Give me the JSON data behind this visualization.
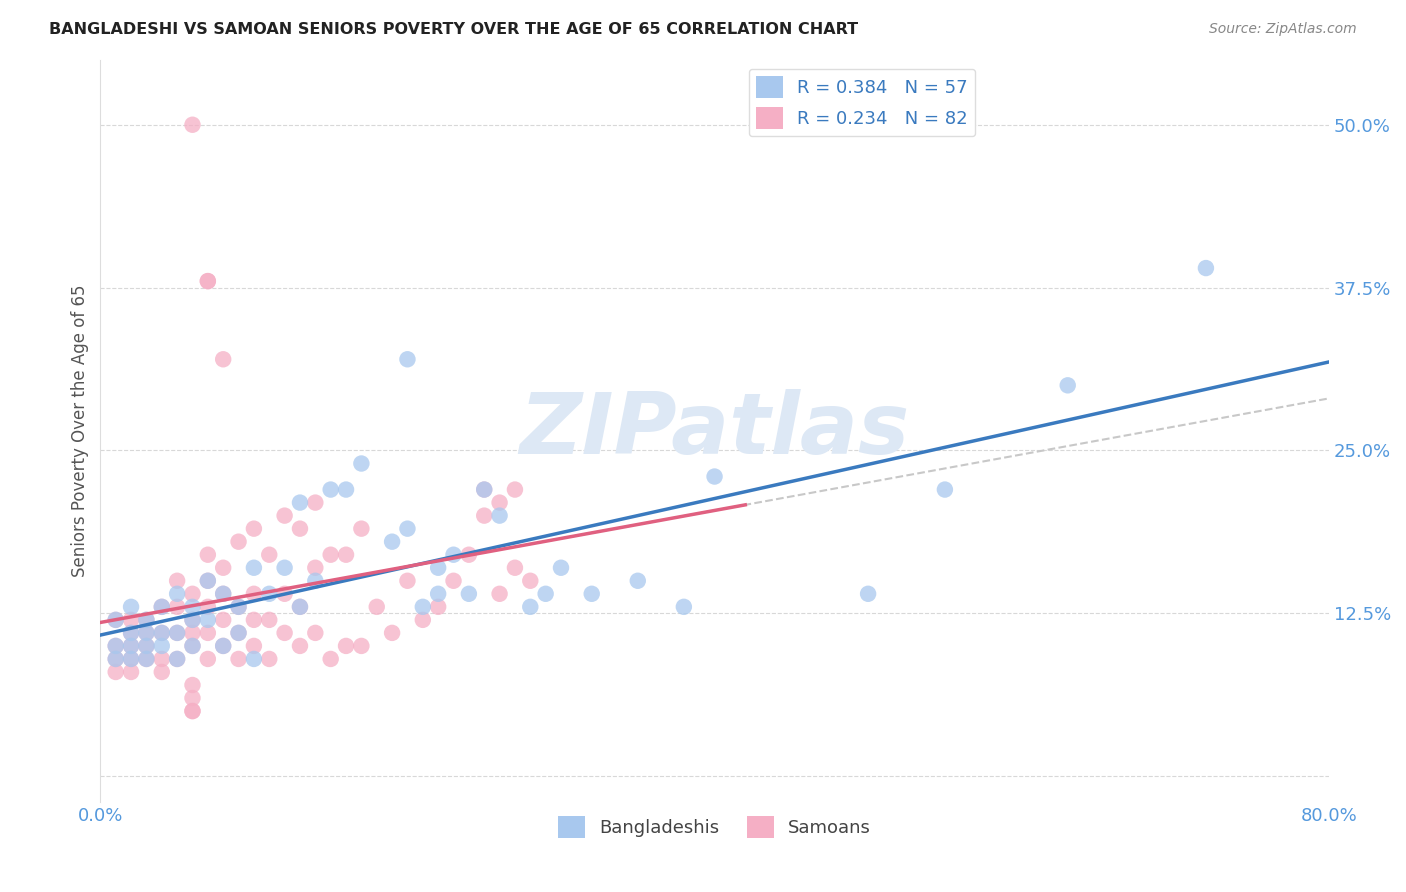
{
  "title": "BANGLADESHI VS SAMOAN SENIORS POVERTY OVER THE AGE OF 65 CORRELATION CHART",
  "source": "Source: ZipAtlas.com",
  "ylabel": "Seniors Poverty Over the Age of 65",
  "xlim": [
    0.0,
    0.8
  ],
  "ylim": [
    -0.02,
    0.55
  ],
  "xticks": [
    0.0,
    0.1,
    0.2,
    0.3,
    0.4,
    0.5,
    0.6,
    0.7,
    0.8
  ],
  "xticklabels": [
    "0.0%",
    "",
    "",
    "",
    "",
    "",
    "",
    "",
    "80.0%"
  ],
  "ytick_positions": [
    0.0,
    0.125,
    0.25,
    0.375,
    0.5
  ],
  "yticklabels": [
    "",
    "12.5%",
    "25.0%",
    "37.5%",
    "50.0%"
  ],
  "background_color": "#ffffff",
  "grid_color": "#d8d8d8",
  "legend_R_blue": "R = 0.384",
  "legend_N_blue": "N = 57",
  "legend_R_pink": "R = 0.234",
  "legend_N_pink": "N = 82",
  "legend_label_blue_name": "Bangladeshis",
  "legend_label_pink_name": "Samoans",
  "blue_fill": "#a8c8ee",
  "pink_fill": "#f5afc5",
  "blue_line_color": "#3a7abf",
  "pink_line_color": "#e06080",
  "dash_color": "#c8c8c8",
  "title_color": "#222222",
  "axis_label_color": "#555555",
  "tick_color": "#5599dd",
  "watermark": "ZIPatlas",
  "watermark_color": "#dde8f5",
  "blue_x": [
    0.01,
    0.01,
    0.01,
    0.02,
    0.02,
    0.02,
    0.02,
    0.03,
    0.03,
    0.03,
    0.03,
    0.04,
    0.04,
    0.04,
    0.05,
    0.05,
    0.05,
    0.06,
    0.06,
    0.06,
    0.07,
    0.07,
    0.08,
    0.08,
    0.09,
    0.09,
    0.1,
    0.1,
    0.11,
    0.12,
    0.13,
    0.13,
    0.14,
    0.15,
    0.16,
    0.17,
    0.19,
    0.2,
    0.21,
    0.22,
    0.22,
    0.23,
    0.24,
    0.25,
    0.26,
    0.28,
    0.29,
    0.3,
    0.32,
    0.35,
    0.38,
    0.4,
    0.5,
    0.55,
    0.63,
    0.72,
    0.2
  ],
  "blue_y": [
    0.1,
    0.12,
    0.09,
    0.11,
    0.1,
    0.09,
    0.13,
    0.11,
    0.1,
    0.09,
    0.12,
    0.11,
    0.13,
    0.1,
    0.11,
    0.09,
    0.14,
    0.13,
    0.1,
    0.12,
    0.12,
    0.15,
    0.1,
    0.14,
    0.13,
    0.11,
    0.09,
    0.16,
    0.14,
    0.16,
    0.13,
    0.21,
    0.15,
    0.22,
    0.22,
    0.24,
    0.18,
    0.19,
    0.13,
    0.14,
    0.16,
    0.17,
    0.14,
    0.22,
    0.2,
    0.13,
    0.14,
    0.16,
    0.14,
    0.15,
    0.13,
    0.23,
    0.14,
    0.22,
    0.3,
    0.39,
    0.32
  ],
  "pink_x": [
    0.01,
    0.01,
    0.01,
    0.01,
    0.02,
    0.02,
    0.02,
    0.02,
    0.02,
    0.03,
    0.03,
    0.03,
    0.03,
    0.04,
    0.04,
    0.04,
    0.04,
    0.05,
    0.05,
    0.05,
    0.05,
    0.06,
    0.06,
    0.06,
    0.06,
    0.07,
    0.07,
    0.07,
    0.07,
    0.07,
    0.08,
    0.08,
    0.08,
    0.08,
    0.09,
    0.09,
    0.09,
    0.09,
    0.1,
    0.1,
    0.1,
    0.1,
    0.11,
    0.11,
    0.11,
    0.12,
    0.12,
    0.12,
    0.13,
    0.13,
    0.13,
    0.14,
    0.14,
    0.14,
    0.15,
    0.15,
    0.16,
    0.16,
    0.17,
    0.17,
    0.18,
    0.19,
    0.2,
    0.21,
    0.22,
    0.23,
    0.24,
    0.25,
    0.26,
    0.27,
    0.28,
    0.07,
    0.07,
    0.08,
    0.25,
    0.26,
    0.27,
    0.06,
    0.06,
    0.06,
    0.06,
    0.06
  ],
  "pink_y": [
    0.1,
    0.09,
    0.08,
    0.12,
    0.1,
    0.11,
    0.09,
    0.08,
    0.12,
    0.1,
    0.09,
    0.12,
    0.11,
    0.09,
    0.11,
    0.08,
    0.13,
    0.09,
    0.11,
    0.13,
    0.15,
    0.1,
    0.12,
    0.14,
    0.11,
    0.09,
    0.11,
    0.13,
    0.15,
    0.17,
    0.1,
    0.12,
    0.14,
    0.16,
    0.11,
    0.13,
    0.09,
    0.18,
    0.1,
    0.12,
    0.14,
    0.19,
    0.09,
    0.12,
    0.17,
    0.11,
    0.14,
    0.2,
    0.1,
    0.13,
    0.19,
    0.11,
    0.16,
    0.21,
    0.09,
    0.17,
    0.1,
    0.17,
    0.1,
    0.19,
    0.13,
    0.11,
    0.15,
    0.12,
    0.13,
    0.15,
    0.17,
    0.2,
    0.14,
    0.16,
    0.15,
    0.38,
    0.38,
    0.32,
    0.22,
    0.21,
    0.22,
    0.07,
    0.06,
    0.05,
    0.05,
    0.5
  ]
}
